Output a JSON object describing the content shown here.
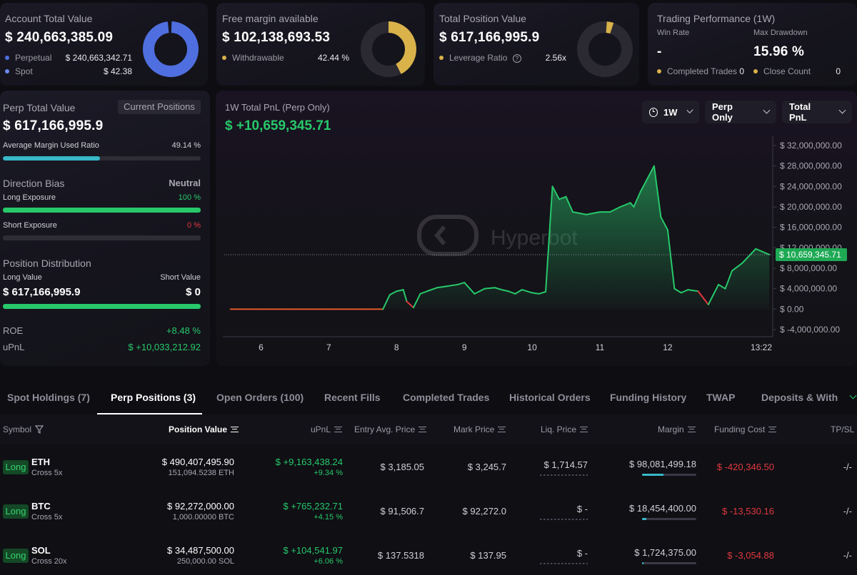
{
  "account": {
    "title": "Account Total Value",
    "value": "$ 240,663,385.09",
    "perp_label": "Perpetual",
    "perp_value": "$ 240,663,342.71",
    "spot_label": "Spot",
    "spot_value": "$ 42.38",
    "perp_color": "#4f6fe0",
    "spot_color": "#6b8cf0"
  },
  "margin": {
    "title": "Free margin available",
    "value": "$ 102,138,693.53",
    "withdrawable_label": "Withdrawable",
    "withdrawable_value": "42.44 %",
    "withdrawable_fraction": 0.4244,
    "color": "#d9b24a"
  },
  "position": {
    "title": "Total Position Value",
    "value": "$ 617,166,995.9",
    "leverage_label": "Leverage Ratio",
    "leverage_value": "2.56x",
    "leverage_fraction": 0.04,
    "color": "#d9b24a"
  },
  "performance": {
    "title": "Trading Performance (1W)",
    "win_rate_label": "Win Rate",
    "win_rate_value": "-",
    "max_drawdown_label": "Max Drawdown",
    "max_drawdown_value": "15.96 %",
    "completed_label": "Completed Trades",
    "completed_value": "0",
    "close_label": "Close Count",
    "close_value": "0"
  },
  "perp_panel": {
    "title": "Perp Total Value",
    "current_positions_button": "Current Positions",
    "value": "$ 617,166,995.9",
    "margin_ratio_label": "Average Margin Used Ratio",
    "margin_ratio_value": "49.14 %",
    "margin_ratio_fraction": 0.4914,
    "direction_label": "Direction Bias",
    "direction_value": "Neutral",
    "long_exposure_label": "Long Exposure",
    "long_exposure_value": "100 %",
    "long_exposure_fraction": 1.0,
    "short_exposure_label": "Short Exposure",
    "short_exposure_value": "0 %",
    "short_exposure_fraction": 0.0,
    "distribution_label": "Position Distribution",
    "long_value_label": "Long Value",
    "short_value_label": "Short Value",
    "long_value": "$ 617,166,995.9",
    "short_value": "$ 0",
    "distribution_fraction": 1.0,
    "roe_label": "ROE",
    "roe_value": "+8.48 %",
    "upnl_label": "uPnL",
    "upnl_value": "$ +10,033,212.92"
  },
  "chart_panel": {
    "title": "1W Total PnL (Perp Only)",
    "value": "$ +10,659,345.71",
    "range_button": "1W",
    "scope_button": "Perp Only",
    "metric_button": "Total PnL",
    "current_label": "$ 10,659,345.71",
    "watermark": "Hyperbot"
  },
  "chart_data": {
    "type": "area",
    "title": "1W Total PnL (Perp Only)",
    "xlabel": "",
    "ylabel": "",
    "ylim": [
      -4000000,
      32000000
    ],
    "y_ticks": [
      32000000,
      28000000,
      24000000,
      20000000,
      16000000,
      12000000,
      8000000,
      4000000,
      0,
      -4000000
    ],
    "y_tick_labels": [
      "$ 32,000,000.00",
      "$ 28,000,000.00",
      "$ 24,000,000.00",
      "$ 20,000,000.00",
      "$ 16,000,000.00",
      "$ 12,000,000.00",
      "$ 8,000,000.00",
      "$ 4,000,000.00",
      "$ 0.00",
      "$ -4,000,000.00"
    ],
    "x_ticks": [
      6,
      7,
      8,
      9,
      10,
      11,
      12,
      13.55
    ],
    "x_tick_labels": [
      "6",
      "7",
      "8",
      "9",
      "10",
      "11",
      "12",
      "13:22"
    ],
    "xlim": [
      5.5,
      13.55
    ],
    "current_value": 10659345.71,
    "x": [
      5.55,
      6.0,
      6.5,
      7.0,
      7.5,
      7.8,
      7.9,
      8.0,
      8.1,
      8.15,
      8.25,
      8.35,
      8.45,
      8.6,
      8.75,
      8.9,
      9.0,
      9.15,
      9.3,
      9.45,
      9.55,
      9.65,
      9.75,
      9.85,
      10.0,
      10.1,
      10.2,
      10.3,
      10.4,
      10.5,
      10.6,
      10.8,
      11.0,
      11.15,
      11.3,
      11.45,
      11.5,
      11.6,
      11.7,
      11.8,
      11.9,
      12.0,
      12.1,
      12.2,
      12.3,
      12.45,
      12.6,
      12.75,
      12.85,
      12.95,
      13.1,
      13.3,
      13.5
    ],
    "values": [
      0,
      0,
      0,
      0,
      0,
      0,
      2800000,
      3500000,
      3800000,
      1500000,
      300000,
      3000000,
      3500000,
      4200000,
      4500000,
      4800000,
      5200000,
      3000000,
      4000000,
      4200000,
      3800000,
      3500000,
      3000000,
      3800000,
      3200000,
      3000000,
      3400000,
      24000000,
      21500000,
      22000000,
      19000000,
      18500000,
      19000000,
      19000000,
      20000000,
      20800000,
      20000000,
      23000000,
      25500000,
      28000000,
      18000000,
      15500000,
      4000000,
      3200000,
      3800000,
      3500000,
      900000,
      4800000,
      4000000,
      7500000,
      9000000,
      11800000,
      10659345.71
    ],
    "negative_segments_color": "#e0393e",
    "positive_color": "#27c86a"
  },
  "tabs": [
    {
      "label": "Spot Holdings (7)"
    },
    {
      "label": "Perp Positions (3)"
    },
    {
      "label": "Open Orders (100)"
    },
    {
      "label": "Recent Fills"
    },
    {
      "label": "Completed Trades"
    },
    {
      "label": "Historical Orders"
    },
    {
      "label": "Funding History"
    },
    {
      "label": "TWAP"
    },
    {
      "label": "Deposits & Withd"
    }
  ],
  "table": {
    "headers": {
      "symbol": "Symbol",
      "position_value": "Position Value",
      "upnl": "uPnL",
      "entry": "Entry Avg. Price",
      "mark": "Mark Price",
      "liq": "Liq. Price",
      "margin": "Margin",
      "funding": "Funding Cost",
      "tpsl": "TP/SL"
    },
    "rows": [
      {
        "side": "Long",
        "symbol": "ETH",
        "mode": "Cross 5x",
        "value": "$ 490,407,495.90",
        "size": "151,094.5238 ETH",
        "upnl": "$ +9,163,438.24",
        "upnl_pct": "+9.34 %",
        "entry": "$ 3,185.05",
        "mark": "$ 3,245.7",
        "liq": "$ 1,714.57",
        "margin": "$ 98,081,499.18",
        "margin_fraction": 0.4,
        "funding": "$ -420,346.50",
        "tpsl": "-/-"
      },
      {
        "side": "Long",
        "symbol": "BTC",
        "mode": "Cross 5x",
        "value": "$ 92,272,000.00",
        "size": "1,000.00000 BTC",
        "upnl": "$ +765,232.71",
        "upnl_pct": "+4.15 %",
        "entry": "$ 91,506.7",
        "mark": "$ 92,272.0",
        "liq": "$ -",
        "margin": "$ 18,454,400.00",
        "margin_fraction": 0.08,
        "funding": "$ -13,530.16",
        "tpsl": "-/-"
      },
      {
        "side": "Long",
        "symbol": "SOL",
        "mode": "Cross 20x",
        "value": "$ 34,487,500.00",
        "size": "250,000.00 SOL",
        "upnl": "$ +104,541.97",
        "upnl_pct": "+6.06 %",
        "entry": "$ 137.5318",
        "mark": "$ 137.95",
        "liq": "$ -",
        "margin": "$ 1,724,375.00",
        "margin_fraction": 0.02,
        "funding": "$ -3,054.88",
        "tpsl": "-/-"
      }
    ]
  }
}
